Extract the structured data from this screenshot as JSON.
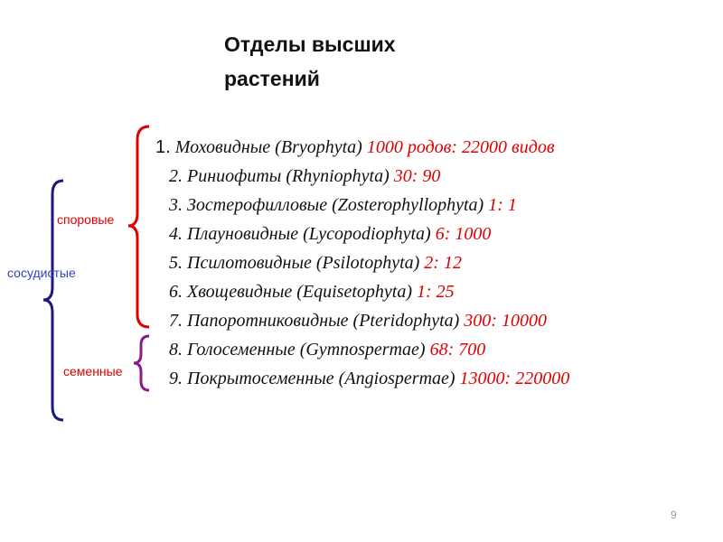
{
  "title": [
    "Отделы высших",
    "растений"
  ],
  "groups": {
    "vascular": "сосудистые",
    "spore": "споровые",
    "seed": "семенные"
  },
  "items": [
    {
      "number": "1.",
      "name": "Моховидные (Bryophyta)",
      "counts": "1000 родов: 22000 видов"
    },
    {
      "number": "2.",
      "name": "Риниофиты (Rhyniophyta)",
      "counts": "30: 90"
    },
    {
      "number": "3.",
      "name": "Зостерофилловые (Zosterophyllophyta)",
      "counts": "1: 1"
    },
    {
      "number": "4.",
      "name": "Плауновидные (Lycopodiophyta)",
      "counts": "6: 1000"
    },
    {
      "number": "5.",
      "name": "Псилотовидные (Psilotophyta)",
      "counts": "2: 12"
    },
    {
      "number": "6.",
      "name": "Хвощевидные (Equisetophyta)",
      "counts": "1: 25"
    },
    {
      "number": "7.",
      "name": "Папоротниковидные (Pteridophyta)",
      "counts": "300: 10000"
    },
    {
      "number": "8.",
      "name": "Голосеменные (Gymnospermae)",
      "counts": "68: 700"
    },
    {
      "number": "9.",
      "name": "Покрытосеменные (Angiospermae)",
      "counts": "13000: 220000"
    }
  ],
  "page_number": "9"
}
